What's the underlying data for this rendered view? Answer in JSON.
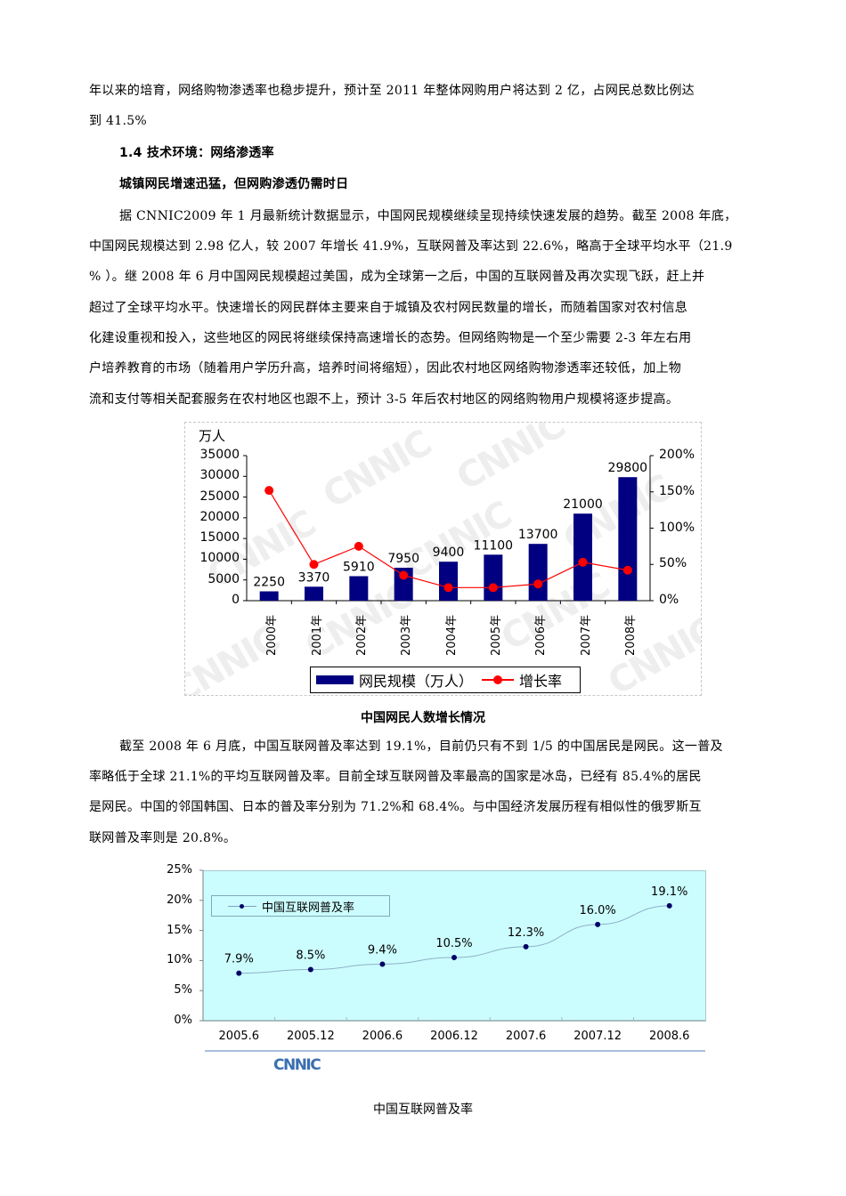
{
  "document": {
    "paragraph_intro": {
      "line1": "年以来的培育，网络购物渗透率也稳步提升，预计至 2011 年整体网购用户将达到 2 亿，占网民总数比例达",
      "line2": "到 41.5%"
    },
    "section_heading": "1.4 技术环境：网络渗透率",
    "subheading": "城镇网民增速迅猛，但网购渗透仍需时日",
    "paragraph_1": [
      "据 CNNIC2009 年 1 月最新统计数据显示，中国网民规模继续呈现持续快速发展的趋势。截至 2008 年底，",
      "中国网民规模达到 2.98 亿人，较 2007 年增长 41.9%，互联网普及率达到 22.6%，略高于全球平均水平（21.9",
      "% ）。继 2008 年 6 月中国网民规模超过美国，成为全球第一之后，中国的互联网普及再次实现飞跃，赶上并",
      "超过了全球平均水平。快速增长的网民群体主要来自于城镇及农村网民数量的增长，而随着国家对农村信息",
      "化建设重视和投入，这些地区的网民将继续保持高速增长的态势。但网络购物是一个至少需要 2-3 年左右用",
      "户培养教育的市场（随着用户学历升高，培养时间将缩短），因此农村地区网络购物渗透率还较低，加上物",
      "流和支付等相关配套服务在农村地区也跟不上，预计 3-5 年后农村地区的网络购物用户规模将逐步提高。"
    ],
    "figure_1_caption": "中国网民人数增长情况",
    "paragraph_2": [
      "截至 2008 年 6 月底，中国互联网普及率达到 19.1%，目前仍只有不到 1/5 的中国居民是网民。这一普及",
      "率略低于全球 21.1%的平均互联网普及率。目前全球互联网普及率最高的国家是冰岛，已经有 85.4%的居民",
      "是网民。中国的邻国韩国、日本的普及率分别为 71.2%和 68.4%。与中国经济发展历程有相似性的俄罗斯互",
      "联网普及率则是 20.8%。"
    ],
    "figure_2_caption": "中国互联网普及率",
    "watermark": "CNNIC",
    "logo_text": "CNNIC"
  },
  "colors": {
    "bar": "#000080",
    "growth_line": "#ff0000",
    "chart2_bg": "#ccfdfe",
    "chart2_line": "#8fb0c8",
    "chart2_marker": "#000066"
  },
  "chart_data": [
    {
      "type": "bar",
      "title": "中国网民人数增长情况",
      "unit_label": "万人",
      "categories": [
        "2000年",
        "2001年",
        "2002年",
        "2003年",
        "2004年",
        "2005年",
        "2006年",
        "2007年",
        "2008年"
      ],
      "series": [
        {
          "name": "网民规模（万人）",
          "type": "bar",
          "axis": "left",
          "values": [
            2250,
            3370,
            5910,
            7950,
            9400,
            11100,
            13700,
            21000,
            29800
          ],
          "labels": [
            "2250",
            "3370",
            "5910",
            "7950",
            "9400",
            "11100",
            "13700",
            "21000",
            "29800"
          ]
        },
        {
          "name": "增长率",
          "type": "line",
          "axis": "right",
          "values": [
            152,
            50,
            75,
            35,
            18,
            18,
            23,
            53,
            42
          ]
        }
      ],
      "y_left": {
        "ticks": [
          "0",
          "5000",
          "10000",
          "15000",
          "20000",
          "25000",
          "30000",
          "35000"
        ],
        "range": [
          0,
          35000
        ]
      },
      "y_right": {
        "ticks": [
          "0%",
          "50%",
          "100%",
          "150%",
          "200%"
        ],
        "range": [
          0,
          200
        ]
      },
      "legend": [
        "网民规模（万人）",
        "增长率"
      ],
      "legend_position": "bottom",
      "grid": false
    },
    {
      "type": "line",
      "title": "中国互联网普及率",
      "categories": [
        "2005.6",
        "2005.12",
        "2006.6",
        "2006.12",
        "2007.6",
        "2007.12",
        "2008.6"
      ],
      "series": [
        {
          "name": "中国互联网普及率",
          "values": [
            7.9,
            8.5,
            9.4,
            10.5,
            12.3,
            16.0,
            19.1
          ],
          "labels": [
            "7.9%",
            "8.5%",
            "9.4%",
            "10.5%",
            "12.3%",
            "16.0%",
            "19.1%"
          ]
        }
      ],
      "y": {
        "ticks": [
          "0%",
          "5%",
          "10%",
          "15%",
          "20%",
          "25%"
        ],
        "range": [
          0,
          25
        ]
      },
      "legend": [
        "中国互联网普及率"
      ],
      "legend_position": "top-left inside",
      "grid": false
    }
  ]
}
